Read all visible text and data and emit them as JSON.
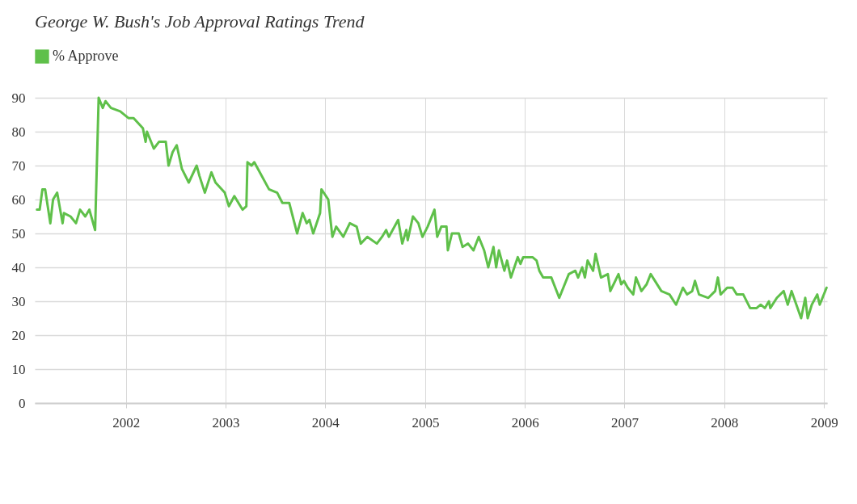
{
  "chart_data": {
    "type": "line",
    "title": "George W. Bush's Job Approval Ratings Trend",
    "x": [
      "2001-02-09",
      "2001-02-19",
      "2001-03-01",
      "2001-03-11",
      "2001-03-30",
      "2001-04-09",
      "2001-04-24",
      "2001-05-14",
      "2001-05-19",
      "2001-06-12",
      "2001-07-02",
      "2001-07-17",
      "2001-08-05",
      "2001-08-20",
      "2001-09-10",
      "2001-09-23",
      "2001-10-08",
      "2001-10-18",
      "2001-11-07",
      "2001-12-11",
      "2002-01-10",
      "2002-01-29",
      "2002-03-04",
      "2002-03-14",
      "2002-03-19",
      "2002-04-13",
      "2002-05-02",
      "2002-05-27",
      "2002-06-06",
      "2002-06-21",
      "2002-07-06",
      "2002-07-25",
      "2002-08-19",
      "2002-09-17",
      "2002-09-27",
      "2002-10-17",
      "2002-11-10",
      "2002-11-25",
      "2002-12-29",
      "2003-01-13",
      "2003-02-02",
      "2003-03-04",
      "2003-03-18",
      "2003-03-22",
      "2003-04-06",
      "2003-04-16",
      "2003-06-09",
      "2003-07-09",
      "2003-07-28",
      "2003-08-22",
      "2003-09-20",
      "2003-10-10",
      "2003-10-25",
      "2003-11-04",
      "2003-11-18",
      "2003-12-13",
      "2003-12-18",
      "2004-01-12",
      "2004-01-27",
      "2004-02-10",
      "2004-03-07",
      "2004-03-31",
      "2004-04-25",
      "2004-05-10",
      "2004-06-03",
      "2004-07-08",
      "2004-07-27",
      "2004-08-11",
      "2004-08-21",
      "2004-09-24",
      "2004-10-09",
      "2004-10-24",
      "2004-10-29",
      "2004-11-17",
      "2004-12-07",
      "2004-12-22",
      "2005-01-10",
      "2005-02-04",
      "2005-02-14",
      "2005-03-01",
      "2005-03-20",
      "2005-03-25",
      "2005-04-09",
      "2005-05-04",
      "2005-05-18",
      "2005-06-07",
      "2005-06-27",
      "2005-07-16",
      "2005-08-05",
      "2005-08-20",
      "2005-09-08",
      "2005-09-18",
      "2005-09-28",
      "2005-10-18",
      "2005-10-28",
      "2005-11-11",
      "2005-12-06",
      "2005-12-16",
      "2005-12-26",
      "2006-01-29",
      "2006-02-13",
      "2006-02-23",
      "2006-03-09",
      "2006-04-08",
      "2006-05-07",
      "2006-06-11",
      "2006-07-05",
      "2006-07-15",
      "2006-07-30",
      "2006-08-09",
      "2006-08-19",
      "2006-09-08",
      "2006-09-17",
      "2006-10-07",
      "2006-11-01",
      "2006-11-10",
      "2006-12-10",
      "2006-12-20",
      "2006-12-30",
      "2007-01-13",
      "2007-02-02",
      "2007-02-12",
      "2007-03-04",
      "2007-03-23",
      "2007-04-07",
      "2007-05-16",
      "2007-06-15",
      "2007-07-09",
      "2007-08-03",
      "2007-08-18",
      "2007-09-06",
      "2007-09-16",
      "2007-10-01",
      "2007-11-04",
      "2007-11-29",
      "2007-12-09",
      "2007-12-19",
      "2008-01-12",
      "2008-02-01",
      "2008-02-16",
      "2008-03-11",
      "2008-04-05",
      "2008-04-29",
      "2008-05-14",
      "2008-05-29",
      "2008-06-13",
      "2008-06-18",
      "2008-07-12",
      "2008-08-06",
      "2008-08-21",
      "2008-09-04",
      "2008-10-09",
      "2008-10-24",
      "2008-11-02",
      "2008-11-17",
      "2008-12-07",
      "2008-12-16",
      "2009-01-10"
    ],
    "series": [
      {
        "name": "% Approve",
        "color": "#5fc04a",
        "values": [
          57,
          57,
          63,
          63,
          53,
          60,
          62,
          53,
          56,
          55,
          53,
          57,
          55,
          57,
          51,
          90,
          87,
          89,
          87,
          86,
          84,
          84,
          81,
          77,
          80,
          75,
          77,
          77,
          70,
          74,
          76,
          69,
          65,
          70,
          67,
          62,
          68,
          65,
          62,
          58,
          61,
          57,
          58,
          71,
          70,
          71,
          63,
          62,
          59,
          59,
          50,
          56,
          53,
          54,
          50,
          56,
          63,
          60,
          49,
          52,
          49,
          53,
          52,
          47,
          49,
          47,
          49,
          51,
          49,
          54,
          47,
          51,
          48,
          55,
          53,
          49,
          52,
          57,
          49,
          52,
          52,
          45,
          50,
          50,
          46,
          47,
          45,
          49,
          45,
          40,
          46,
          40,
          45,
          39,
          42,
          37,
          43,
          41,
          43,
          43,
          42,
          39,
          37,
          37,
          31,
          38,
          39,
          37,
          40,
          37,
          42,
          39,
          44,
          37,
          38,
          33,
          38,
          35,
          36,
          34,
          32,
          37,
          33,
          35,
          38,
          33,
          32,
          29,
          34,
          32,
          33,
          36,
          32,
          31,
          33,
          37,
          32,
          34,
          34,
          32,
          32,
          28,
          28,
          29,
          28,
          30,
          28,
          31,
          33,
          29,
          33,
          25,
          31,
          25,
          29,
          32,
          29,
          34
        ]
      }
    ],
    "xlim": [
      "2001-02-01",
      "2009-01-12"
    ],
    "xticks": [
      "2002",
      "2003",
      "2004",
      "2005",
      "2006",
      "2007",
      "2008",
      "2009"
    ],
    "ylim": [
      0,
      90
    ],
    "yticks": [
      0,
      10,
      20,
      30,
      40,
      50,
      60,
      70,
      80,
      90
    ],
    "grid": true,
    "legend": "top left",
    "marker": "none",
    "line_style": "solid"
  }
}
